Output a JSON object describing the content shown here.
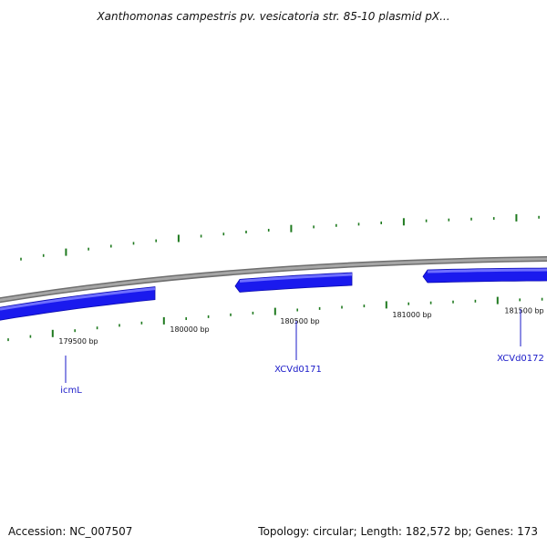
{
  "title": "Xanthomonas campestris pv. vesicatoria str. 85-10 plasmid pX...",
  "footer": {
    "accession": "Accession: NC_007507",
    "summary": "Topology: circular; Length: 182,572 bp; Genes: 173"
  },
  "colors": {
    "backbone": "#8c8c8c",
    "gene": "#1a1aee",
    "gene_highlight": "#6f6fff",
    "tick": "#1f7a1f",
    "gene_label": "#1a1ac8",
    "ruler_label": "#111111"
  },
  "ruler_labels": [
    {
      "position_bp": 179500,
      "text": "179500 bp"
    },
    {
      "position_bp": 180000,
      "text": "180000 bp"
    },
    {
      "position_bp": 180500,
      "text": "180500 bp"
    },
    {
      "position_bp": 181000,
      "text": "181000 bp"
    },
    {
      "position_bp": 181500,
      "text": "181500 bp"
    }
  ],
  "genes": [
    {
      "name": "icmL",
      "strand": "reverse"
    },
    {
      "name": "XCVd0171",
      "strand": "reverse"
    },
    {
      "name": "XCVd0172",
      "strand": "reverse"
    }
  ]
}
